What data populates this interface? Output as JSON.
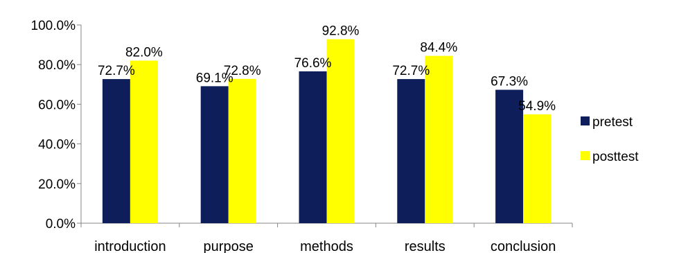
{
  "chart_data": {
    "type": "bar",
    "categories": [
      "introduction",
      "purpose",
      "methods",
      "results",
      "conclusion"
    ],
    "series": [
      {
        "name": "pretest",
        "values": [
          72.7,
          69.1,
          76.6,
          72.7,
          67.3
        ],
        "color": "#0D1E5A"
      },
      {
        "name": "posttest",
        "values": [
          82.0,
          72.8,
          92.8,
          84.4,
          54.9
        ],
        "color": "#FFFF00"
      }
    ],
    "data_labels": [
      [
        "72.7%",
        "69.1%",
        "76.6%",
        "72.7%",
        "67.3%"
      ],
      [
        "82.0%",
        "72.8%",
        "92.8%",
        "84.4%",
        "54.9%"
      ]
    ],
    "ylim": [
      0,
      100
    ],
    "yticks": [
      0,
      20,
      40,
      60,
      80,
      100
    ],
    "ytick_labels": [
      "0.0%",
      "20.0%",
      "40.0%",
      "60.0%",
      "80.0%",
      "100.0%"
    ],
    "title": "",
    "xlabel": "",
    "ylabel": "",
    "grid": false,
    "legend": "right"
  }
}
